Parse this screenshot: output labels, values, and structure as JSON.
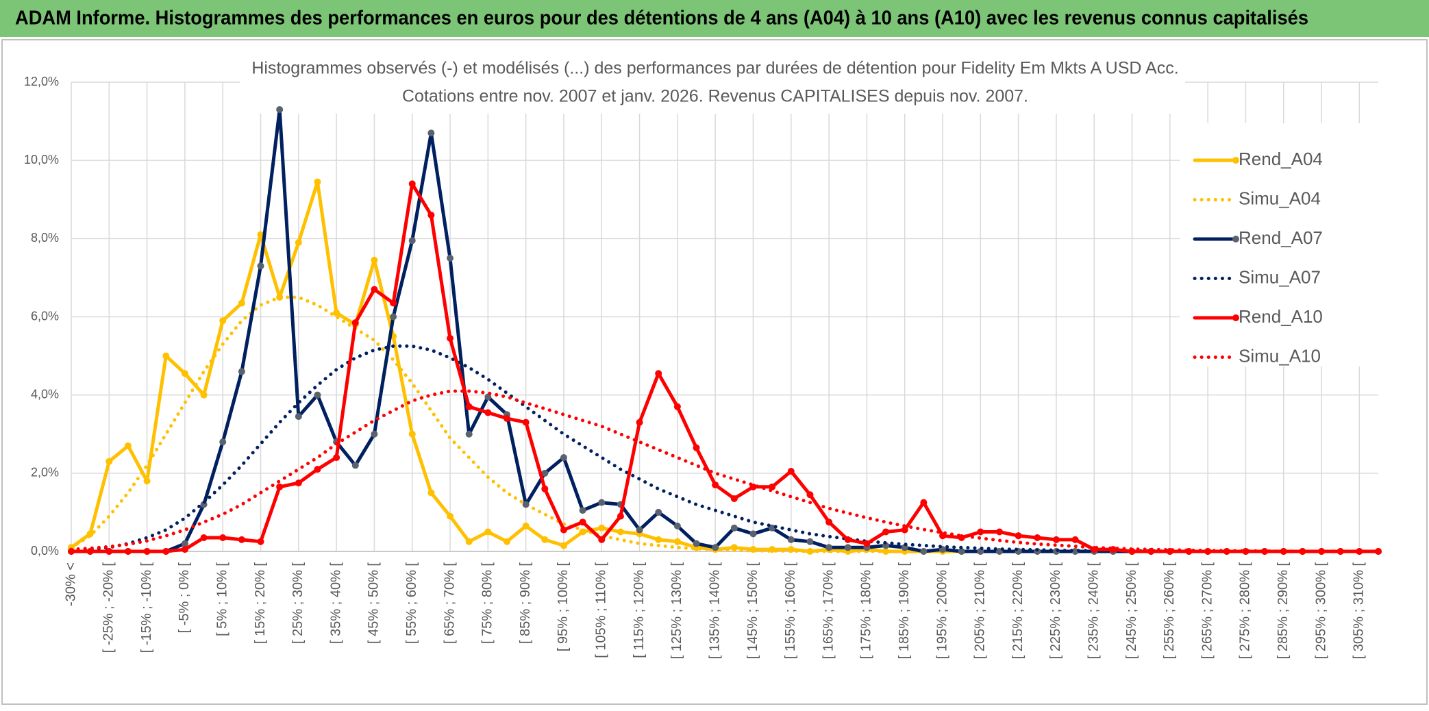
{
  "header": {
    "title": "ADAM Informe. Histogrammes des performances en euros pour des détentions de 4 ans (A04) à 10 ans (A10) avec les revenus connus capitalisés"
  },
  "chart_data": {
    "type": "line",
    "title": "Histogrammes observés (-) et modélisés (...) des performances par durées de détention pour Fidelity Em Mkts A USD Acc.",
    "subtitle": "Cotations entre nov. 2007 et janv. 2026. Revenus CAPITALISES depuis nov. 2007.",
    "categories": [
      "-30% <",
      null,
      "[ -25% ; -20% [",
      null,
      "[ -15% ; -10% [",
      null,
      "[ -5% ; 0% [",
      null,
      "[ 5% ; 10% [",
      null,
      "[ 15% ; 20% [",
      null,
      "[ 25% ; 30% [",
      null,
      "[ 35% ; 40% [",
      null,
      "[ 45% ; 50% [",
      null,
      "[ 55% ; 60% [",
      null,
      "[ 65% ; 70% [",
      null,
      "[ 75% ; 80% [",
      null,
      "[ 85% ; 90% [",
      null,
      "[ 95% ; 100% [",
      null,
      "[ 105% ; 110% [",
      null,
      "[ 115% ; 120% [",
      null,
      "[ 125% ; 130% [",
      null,
      "[ 135% ; 140% [",
      null,
      "[ 145% ; 150% [",
      null,
      "[ 155% ; 160% [",
      null,
      "[ 165% ; 170% [",
      null,
      "[ 175% ; 180% [",
      null,
      "[ 185% ; 190% [",
      null,
      "[ 195% ; 200% [",
      null,
      "[ 205% ; 210% [",
      null,
      "[ 215% ; 220% [",
      null,
      "[ 225% ; 230% [",
      null,
      "[ 235% ; 240% [",
      null,
      "[ 245% ; 250% [",
      null,
      "[ 255% ; 260% [",
      null,
      "[ 265% ; 270% [",
      null,
      "[ 275% ; 280% [",
      null,
      "[ 285% ; 290% [",
      null,
      "[ 295% ; 300% [",
      null,
      "[ 305% ; 310% [",
      null
    ],
    "ylim": [
      0,
      12
    ],
    "yticks": [
      {
        "value": 0,
        "label": "0,0%"
      },
      {
        "value": 2,
        "label": "2,0%"
      },
      {
        "value": 4,
        "label": "4,0%"
      },
      {
        "value": 6,
        "label": "6,0%"
      },
      {
        "value": 8,
        "label": "8,0%"
      },
      {
        "value": 10,
        "label": "10,0%"
      },
      {
        "value": 12,
        "label": "12,0%"
      }
    ],
    "grid": true,
    "legend": "right",
    "series": [
      {
        "name": "Rend_A04",
        "color": "#FFC000",
        "style": "solid",
        "marker_color": "#FFC000",
        "values": [
          0.1,
          0.45,
          2.3,
          2.7,
          1.8,
          5.0,
          4.55,
          4.0,
          5.9,
          6.35,
          8.1,
          6.5,
          7.9,
          9.45,
          6.1,
          5.8,
          7.45,
          5.5,
          3.0,
          1.5,
          0.9,
          0.25,
          0.5,
          0.25,
          0.65,
          0.3,
          0.15,
          0.5,
          0.6,
          0.5,
          0.45,
          0.3,
          0.25,
          0.1,
          0.05,
          0.1,
          0.05,
          0.05,
          0.05,
          0,
          0.05,
          0,
          0.05,
          0,
          0,
          0,
          0,
          0,
          0,
          0,
          0,
          0,
          0,
          0,
          0,
          0,
          0,
          0,
          0,
          0,
          0,
          0,
          0,
          0,
          0,
          0,
          0,
          0,
          0,
          0
        ]
      },
      {
        "name": "Simu_A04",
        "color": "#FFC000",
        "style": "dotted",
        "values": [
          0.1,
          0.4,
          0.9,
          1.5,
          2.2,
          3.0,
          3.8,
          4.6,
          5.3,
          5.9,
          6.3,
          6.5,
          6.5,
          6.3,
          6.0,
          5.7,
          5.4,
          4.9,
          4.3,
          3.6,
          2.9,
          2.4,
          1.9,
          1.5,
          1.2,
          0.95,
          0.7,
          0.55,
          0.4,
          0.3,
          0.2,
          0.15,
          0.1,
          0.07,
          0.05,
          0.03,
          0.02,
          0.01,
          0.01,
          0,
          0,
          0,
          0,
          0,
          0,
          0,
          0,
          0,
          0,
          0,
          0,
          0,
          0,
          0,
          0,
          0,
          0,
          0,
          0,
          0,
          0,
          0,
          0,
          0,
          0,
          0,
          0,
          0,
          0,
          0
        ]
      },
      {
        "name": "Rend_A07",
        "color": "#002060",
        "style": "solid",
        "marker_color": "#5A6270",
        "values": [
          0,
          0,
          0,
          0,
          0,
          0,
          0.2,
          1.2,
          2.8,
          4.6,
          7.3,
          11.3,
          3.45,
          4.0,
          2.8,
          2.2,
          3.0,
          6.0,
          7.95,
          10.7,
          7.5,
          3.0,
          3.95,
          3.5,
          1.2,
          2.0,
          2.4,
          1.05,
          1.25,
          1.2,
          0.55,
          1.0,
          0.65,
          0.2,
          0.1,
          0.6,
          0.45,
          0.6,
          0.3,
          0.25,
          0.1,
          0.1,
          0.1,
          0.15,
          0.1,
          0,
          0.05,
          0,
          0,
          0,
          0,
          0,
          0,
          0,
          0,
          0,
          0,
          0,
          0,
          0,
          0,
          0,
          0,
          0,
          0,
          0,
          0,
          0,
          0,
          0
        ]
      },
      {
        "name": "Simu_A07",
        "color": "#002060",
        "style": "dotted",
        "values": [
          0.02,
          0.05,
          0.1,
          0.2,
          0.35,
          0.55,
          0.85,
          1.25,
          1.7,
          2.2,
          2.75,
          3.3,
          3.8,
          4.25,
          4.65,
          4.95,
          5.15,
          5.25,
          5.25,
          5.15,
          4.95,
          4.7,
          4.4,
          4.05,
          3.7,
          3.35,
          3.0,
          2.7,
          2.4,
          2.1,
          1.85,
          1.6,
          1.4,
          1.2,
          1.05,
          0.9,
          0.75,
          0.65,
          0.55,
          0.45,
          0.38,
          0.32,
          0.26,
          0.22,
          0.18,
          0.15,
          0.12,
          0.1,
          0.08,
          0.06,
          0.05,
          0.04,
          0.03,
          0.02,
          0.02,
          0.01,
          0.01,
          0.01,
          0,
          0,
          0,
          0,
          0,
          0,
          0,
          0,
          0,
          0,
          0,
          0
        ]
      },
      {
        "name": "Rend_A10",
        "color": "#FF0000",
        "style": "solid",
        "marker_color": "#FF0000",
        "values": [
          0,
          0,
          0,
          0,
          0,
          0,
          0.05,
          0.35,
          0.35,
          0.3,
          0.25,
          1.65,
          1.75,
          2.1,
          2.4,
          5.85,
          6.7,
          6.35,
          9.4,
          8.6,
          5.45,
          3.7,
          3.55,
          3.4,
          3.3,
          1.6,
          0.55,
          0.75,
          0.3,
          0.9,
          3.3,
          4.55,
          3.7,
          2.65,
          1.7,
          1.35,
          1.65,
          1.65,
          2.05,
          1.45,
          0.75,
          0.3,
          0.2,
          0.5,
          0.55,
          1.25,
          0.4,
          0.35,
          0.5,
          0.5,
          0.4,
          0.35,
          0.3,
          0.3,
          0.05,
          0.05,
          0,
          0,
          0,
          0,
          0,
          0,
          0,
          0,
          0,
          0,
          0,
          0,
          0,
          0
        ]
      },
      {
        "name": "Simu_A10",
        "color": "#FF0000",
        "style": "dotted",
        "values": [
          0.05,
          0.08,
          0.12,
          0.18,
          0.27,
          0.4,
          0.55,
          0.75,
          0.95,
          1.2,
          1.5,
          1.8,
          2.1,
          2.4,
          2.75,
          3.05,
          3.35,
          3.6,
          3.85,
          4.0,
          4.1,
          4.1,
          4.05,
          3.95,
          3.8,
          3.65,
          3.5,
          3.35,
          3.2,
          3.0,
          2.8,
          2.6,
          2.4,
          2.2,
          2.0,
          1.85,
          1.7,
          1.55,
          1.4,
          1.25,
          1.1,
          0.98,
          0.86,
          0.75,
          0.65,
          0.56,
          0.48,
          0.4,
          0.34,
          0.28,
          0.23,
          0.19,
          0.16,
          0.13,
          0.1,
          0.08,
          0.06,
          0.05,
          0.04,
          0.03,
          0.02,
          0.02,
          0.01,
          0.01,
          0,
          0,
          0,
          0,
          0,
          0
        ]
      }
    ]
  }
}
